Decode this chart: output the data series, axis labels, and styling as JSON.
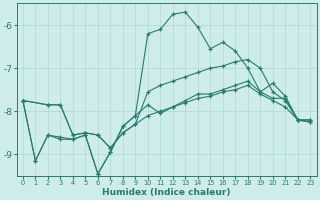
{
  "xlabel": "Humidex (Indice chaleur)",
  "bg_color": "#cdecea",
  "grid_color": "#b0d8d4",
  "line_color": "#2a7a6f",
  "xlim": [
    -0.5,
    23.5
  ],
  "ylim": [
    -9.5,
    -5.5
  ],
  "yticks": [
    -9,
    -8,
    -7,
    -6
  ],
  "xticks": [
    0,
    1,
    2,
    3,
    4,
    5,
    6,
    7,
    8,
    9,
    10,
    11,
    12,
    13,
    14,
    15,
    16,
    17,
    18,
    19,
    20,
    21,
    22,
    23
  ],
  "line1_x": [
    0,
    1,
    2,
    3,
    4,
    5,
    6,
    7,
    8,
    9,
    10,
    11,
    12,
    13,
    14,
    15,
    16,
    17,
    18,
    19,
    20,
    21,
    22,
    23
  ],
  "line1_y": [
    -7.75,
    -9.15,
    -8.55,
    -8.6,
    -8.65,
    -8.55,
    -9.45,
    -8.95,
    -8.35,
    -8.1,
    -7.85,
    -8.05,
    -7.9,
    -7.75,
    -7.6,
    -7.6,
    -7.5,
    -7.4,
    -7.3,
    -7.55,
    -7.7,
    -7.7,
    -8.2,
    -8.2
  ],
  "line2_x": [
    0,
    2,
    3,
    4,
    5,
    6,
    7,
    8,
    9,
    10,
    11,
    12,
    13,
    14,
    15,
    16,
    17,
    18,
    19,
    20,
    21,
    22,
    23
  ],
  "line2_y": [
    -7.75,
    -7.85,
    -7.85,
    -8.55,
    -8.5,
    -8.55,
    -8.85,
    -8.5,
    -8.3,
    -7.55,
    -7.4,
    -7.3,
    -7.2,
    -7.1,
    -7.0,
    -6.95,
    -6.85,
    -6.8,
    -7.0,
    -7.55,
    -7.75,
    -8.2,
    -8.25
  ],
  "line3_x": [
    0,
    1,
    2,
    3,
    4,
    5,
    6,
    7,
    8,
    9,
    10,
    11,
    12,
    13,
    14,
    15,
    16,
    17,
    18,
    19,
    20,
    21,
    22,
    23
  ],
  "line3_y": [
    -7.75,
    -9.15,
    -8.55,
    -8.65,
    -8.65,
    -8.55,
    -9.45,
    -8.95,
    -8.35,
    -8.1,
    -6.2,
    -6.1,
    -5.75,
    -5.7,
    -6.05,
    -6.55,
    -6.4,
    -6.6,
    -7.0,
    -7.55,
    -7.35,
    -7.65,
    -8.2,
    -8.2
  ],
  "line4_x": [
    0,
    2,
    3,
    4,
    5,
    6,
    7,
    8,
    9,
    10,
    11,
    12,
    13,
    14,
    15,
    16,
    17,
    18,
    19,
    20,
    21,
    22,
    23
  ],
  "line4_y": [
    -7.75,
    -7.85,
    -7.85,
    -8.55,
    -8.5,
    -8.55,
    -8.85,
    -8.5,
    -8.3,
    -8.1,
    -8.0,
    -7.9,
    -7.8,
    -7.7,
    -7.65,
    -7.55,
    -7.5,
    -7.4,
    -7.6,
    -7.75,
    -7.9,
    -8.2,
    -8.25
  ]
}
